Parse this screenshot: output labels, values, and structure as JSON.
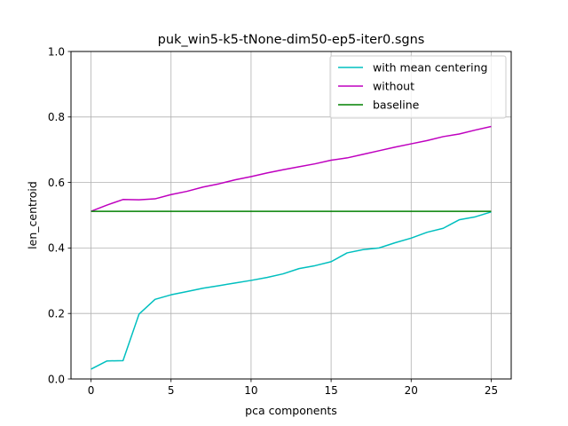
{
  "chart_data": {
    "type": "line",
    "title": "puk_win5-k5-tNone-dim50-ep5-iter0.sgns",
    "xlabel": "pca components",
    "ylabel": "len_centroid",
    "xlim": [
      -1.25,
      26.25
    ],
    "ylim": [
      0,
      1.0
    ],
    "xticks": [
      0,
      5,
      10,
      15,
      20,
      25
    ],
    "xtick_labels": [
      "0",
      "5",
      "10",
      "15",
      "20",
      "25"
    ],
    "yticks": [
      0,
      0.2,
      0.4,
      0.6,
      0.8,
      1.0
    ],
    "ytick_labels": [
      "0.0",
      "0.2",
      "0.4",
      "0.6",
      "0.8",
      "1.0"
    ],
    "grid": true,
    "legend_position": "top-right",
    "x": [
      0,
      1,
      2,
      3,
      4,
      5,
      6,
      7,
      8,
      9,
      10,
      11,
      12,
      13,
      14,
      15,
      16,
      17,
      18,
      19,
      20,
      21,
      22,
      23,
      24,
      25
    ],
    "series": [
      {
        "name": "with mean centering",
        "color": "#00bfbf",
        "values": [
          0.03,
          0.055,
          0.056,
          0.198,
          0.243,
          0.257,
          0.267,
          0.277,
          0.285,
          0.293,
          0.301,
          0.31,
          0.321,
          0.337,
          0.346,
          0.358,
          0.385,
          0.395,
          0.4,
          0.416,
          0.43,
          0.448,
          0.46,
          0.486,
          0.495,
          0.51
        ]
      },
      {
        "name": "without",
        "color": "#bf00bf",
        "values": [
          0.512,
          0.531,
          0.548,
          0.547,
          0.55,
          0.563,
          0.573,
          0.586,
          0.596,
          0.608,
          0.618,
          0.629,
          0.639,
          0.648,
          0.657,
          0.668,
          0.675,
          0.686,
          0.697,
          0.708,
          0.718,
          0.728,
          0.74,
          0.748,
          0.76,
          0.771
        ]
      },
      {
        "name": "baseline",
        "color": "#008000",
        "values": [
          0.512,
          0.512,
          0.512,
          0.512,
          0.512,
          0.512,
          0.512,
          0.512,
          0.512,
          0.512,
          0.512,
          0.512,
          0.512,
          0.512,
          0.512,
          0.512,
          0.512,
          0.512,
          0.512,
          0.512,
          0.512,
          0.512,
          0.512,
          0.512,
          0.512,
          0.512
        ]
      }
    ]
  }
}
